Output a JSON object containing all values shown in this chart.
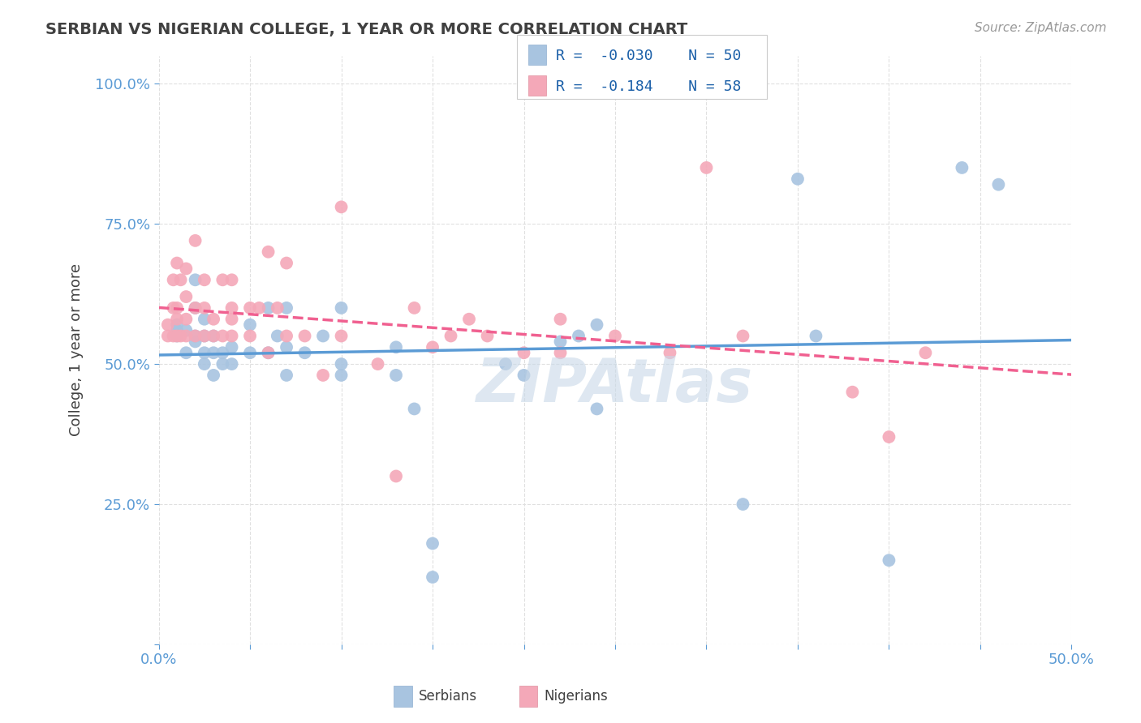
{
  "title": "SERBIAN VS NIGERIAN COLLEGE, 1 YEAR OR MORE CORRELATION CHART",
  "source_text": "Source: ZipAtlas.com",
  "ylabel": "College, 1 year or more",
  "xlim": [
    0.0,
    0.5
  ],
  "ylim": [
    0.0,
    1.05
  ],
  "serbian_color": "#a8c4e0",
  "nigerian_color": "#f4a8b8",
  "serbian_line_color": "#5b9bd5",
  "nigerian_line_color": "#f06090",
  "watermark_color": "#c8d8e8",
  "legend_R_serbian": "-0.030",
  "legend_N_serbian": "50",
  "legend_R_nigerian": "-0.184",
  "legend_N_nigerian": "58",
  "legend_label_serbian": "Serbians",
  "legend_label_nigerian": "Nigerians",
  "serbian_x": [
    0.01,
    0.01,
    0.01,
    0.015,
    0.015,
    0.02,
    0.02,
    0.02,
    0.02,
    0.025,
    0.025,
    0.025,
    0.025,
    0.03,
    0.03,
    0.03,
    0.035,
    0.035,
    0.04,
    0.04,
    0.05,
    0.05,
    0.06,
    0.06,
    0.065,
    0.07,
    0.07,
    0.07,
    0.08,
    0.09,
    0.1,
    0.1,
    0.1,
    0.13,
    0.13,
    0.14,
    0.15,
    0.15,
    0.19,
    0.2,
    0.22,
    0.23,
    0.24,
    0.24,
    0.32,
    0.35,
    0.36,
    0.4,
    0.44,
    0.46
  ],
  "serbian_y": [
    0.55,
    0.56,
    0.57,
    0.52,
    0.56,
    0.54,
    0.55,
    0.6,
    0.65,
    0.5,
    0.52,
    0.55,
    0.58,
    0.48,
    0.52,
    0.55,
    0.5,
    0.52,
    0.5,
    0.53,
    0.52,
    0.57,
    0.52,
    0.6,
    0.55,
    0.48,
    0.53,
    0.6,
    0.52,
    0.55,
    0.48,
    0.5,
    0.6,
    0.48,
    0.53,
    0.42,
    0.18,
    0.12,
    0.5,
    0.48,
    0.54,
    0.55,
    0.42,
    0.57,
    0.25,
    0.83,
    0.55,
    0.15,
    0.85,
    0.82
  ],
  "nigerian_x": [
    0.005,
    0.005,
    0.008,
    0.008,
    0.008,
    0.01,
    0.01,
    0.01,
    0.01,
    0.012,
    0.012,
    0.015,
    0.015,
    0.015,
    0.015,
    0.02,
    0.02,
    0.02,
    0.025,
    0.025,
    0.025,
    0.03,
    0.03,
    0.035,
    0.035,
    0.04,
    0.04,
    0.04,
    0.04,
    0.05,
    0.05,
    0.055,
    0.06,
    0.06,
    0.065,
    0.07,
    0.07,
    0.08,
    0.09,
    0.1,
    0.1,
    0.12,
    0.13,
    0.14,
    0.15,
    0.16,
    0.17,
    0.18,
    0.2,
    0.22,
    0.22,
    0.25,
    0.28,
    0.3,
    0.32,
    0.38,
    0.4,
    0.42
  ],
  "nigerian_y": [
    0.55,
    0.57,
    0.55,
    0.6,
    0.65,
    0.55,
    0.58,
    0.6,
    0.68,
    0.55,
    0.65,
    0.55,
    0.58,
    0.62,
    0.67,
    0.55,
    0.6,
    0.72,
    0.55,
    0.6,
    0.65,
    0.55,
    0.58,
    0.55,
    0.65,
    0.55,
    0.58,
    0.6,
    0.65,
    0.55,
    0.6,
    0.6,
    0.52,
    0.7,
    0.6,
    0.55,
    0.68,
    0.55,
    0.48,
    0.55,
    0.78,
    0.5,
    0.3,
    0.6,
    0.53,
    0.55,
    0.58,
    0.55,
    0.52,
    0.52,
    0.58,
    0.55,
    0.52,
    0.85,
    0.55,
    0.45,
    0.37,
    0.52
  ],
  "background_color": "#ffffff",
  "grid_color": "#e0e0e0",
  "title_color": "#404040",
  "axis_color": "#5b9bd5"
}
